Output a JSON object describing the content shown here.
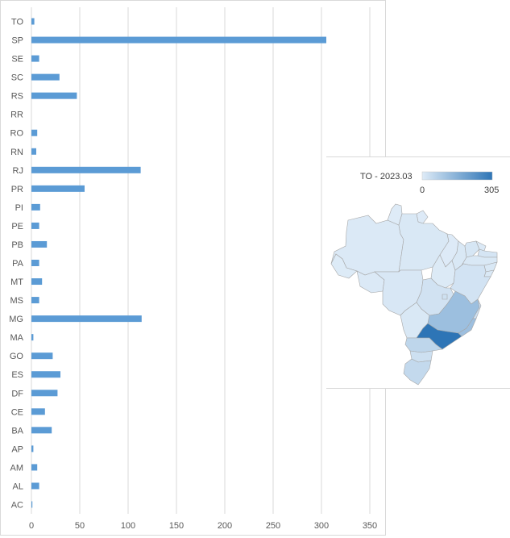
{
  "chart_data": [
    {
      "type": "bar",
      "orientation": "horizontal",
      "categories": [
        "TO",
        "SP",
        "SE",
        "SC",
        "RS",
        "RR",
        "RO",
        "RN",
        "RJ",
        "PR",
        "PI",
        "PE",
        "PB",
        "PA",
        "MT",
        "MS",
        "MG",
        "MA",
        "GO",
        "ES",
        "DF",
        "CE",
        "BA",
        "AP",
        "AM",
        "AL",
        "AC"
      ],
      "values": [
        3,
        305,
        8,
        29,
        47,
        0,
        6,
        5,
        113,
        55,
        9,
        8,
        16,
        8,
        11,
        8,
        114,
        2,
        22,
        30,
        27,
        14,
        21,
        2,
        6,
        8,
        1
      ],
      "xlim": [
        0,
        350
      ],
      "xticks": [
        0,
        50,
        100,
        150,
        200,
        250,
        300,
        350
      ],
      "grid": true,
      "bar_color": "#5b9bd5",
      "grid_color": "#d9d9d9"
    },
    {
      "type": "choropleth",
      "title": "TO - 2023.03",
      "scale_min_label": "0",
      "scale_max_label": "305",
      "scale_min": 0,
      "scale_max": 305,
      "color_low": "#deebf7",
      "color_high": "#2e75b6",
      "regions": {
        "SP": 305,
        "MG": 114,
        "RJ": 113,
        "PR": 55,
        "RS": 47,
        "ES": 30,
        "SC": 29,
        "DF": 27,
        "GO": 22,
        "BA": 21,
        "PB": 16,
        "CE": 14,
        "MT": 11,
        "PI": 9,
        "SE": 8,
        "PE": 8,
        "PA": 8,
        "MS": 8,
        "AL": 8,
        "RO": 6,
        "AM": 6,
        "RN": 5,
        "TO": 3,
        "MA": 2,
        "AP": 2,
        "AC": 1,
        "RR": 0
      }
    }
  ]
}
